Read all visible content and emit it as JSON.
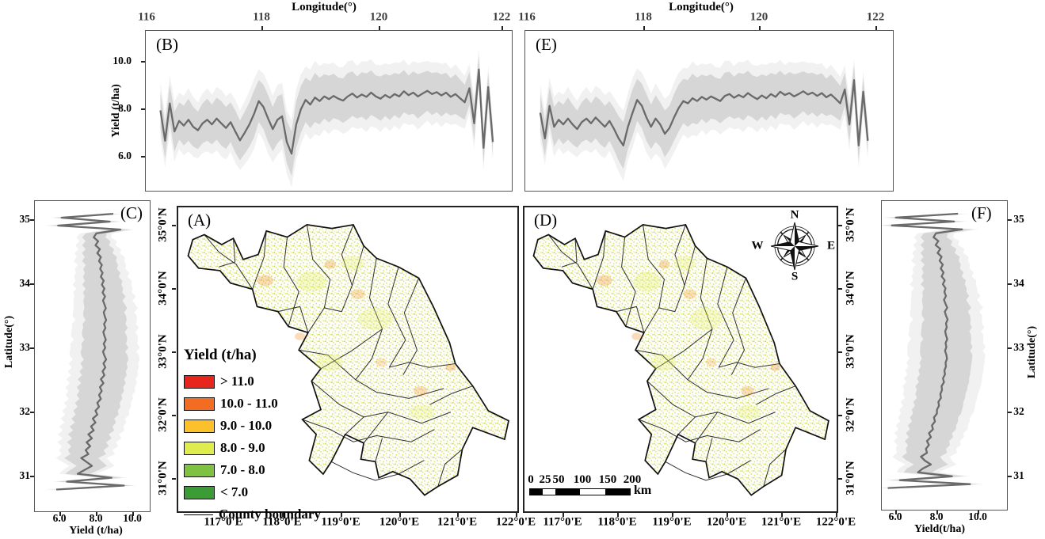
{
  "panels": {
    "a": "(A)",
    "b": "(B)",
    "c": "(C)",
    "d": "(D)",
    "e": "(E)",
    "f": "(F)"
  },
  "axes": {
    "top_title": "Longitude(°)",
    "top_ticks": [
      "116",
      "118",
      "120",
      "122"
    ],
    "b_yield_label": "Yield (t/ha)",
    "b_yield_ticks": [
      "10.0",
      "8.0",
      "6.0"
    ],
    "map_lon_ticks": [
      "117°0'E",
      "118°0'E",
      "119°0'E",
      "120°0'E",
      "121°0'E",
      "122°0'E"
    ],
    "map_lat_ticks": [
      "35°0'N",
      "34°0'N",
      "33°0'N",
      "32°0'N",
      "31°0'N"
    ],
    "c_lat_label": "Latitude(°)",
    "f_lat_label": "Latitude(°)",
    "cf_lat_ticks": [
      "35",
      "34",
      "33",
      "32",
      "31"
    ],
    "cf_yield_ticks": [
      "6.0",
      "8.0",
      "10.0"
    ],
    "c_yield_label": "Yield (t/ha)",
    "f_yield_label": "Yield(t/ha)"
  },
  "legend": {
    "title": "Yield (t/ha)",
    "items": [
      {
        "label": "> 11.0",
        "color": "#e8251d"
      },
      {
        "label": "10.0 - 11.0",
        "color": "#f26c21"
      },
      {
        "label": "9.0 - 10.0",
        "color": "#fcc02a"
      },
      {
        "label": "8.0 - 9.0",
        "color": "#dfec4d"
      },
      {
        "label": "7.0 - 8.0",
        "color": "#7fc241"
      },
      {
        "label": "< 7.0",
        "color": "#3b9c35"
      }
    ],
    "boundary_label": "County boundary"
  },
  "compass": {
    "n": "N",
    "e": "E",
    "s": "S",
    "w": "W"
  },
  "scalebar": {
    "ticks": [
      "0",
      "25",
      "50",
      "100",
      "150",
      "200"
    ],
    "unit": "km"
  },
  "chart_data": [
    {
      "id": "B",
      "type": "line",
      "panel": "(B)",
      "orientation": "horizontal",
      "xlabel": "Longitude(°)",
      "ylabel": "Yield (t/ha)",
      "x_range": [
        115.97,
        122.21
      ],
      "y_range": [
        4.5,
        11.3
      ],
      "x_start": 116.22,
      "x_step": 0.08,
      "line_color": "#6a6a6a",
      "band_color": "#d3d3d3",
      "mean": [
        7.9,
        6.6,
        8.2,
        7.0,
        7.45,
        7.25,
        7.5,
        7.2,
        7.05,
        7.35,
        7.5,
        7.3,
        7.55,
        7.35,
        7.15,
        7.4,
        7.0,
        6.62,
        6.95,
        7.3,
        7.75,
        8.3,
        8.05,
        7.55,
        7.1,
        7.5,
        7.65,
        6.55,
        6.05,
        7.3,
        7.95,
        8.35,
        8.15,
        8.45,
        8.3,
        8.5,
        8.38,
        8.52,
        8.4,
        8.32,
        8.5,
        8.62,
        8.45,
        8.58,
        8.48,
        8.66,
        8.5,
        8.4,
        8.56,
        8.44,
        8.6,
        8.5,
        8.72,
        8.55,
        8.66,
        8.5,
        8.62,
        8.74,
        8.6,
        8.68,
        8.54,
        8.66,
        8.48,
        8.6,
        8.42,
        8.25,
        8.85,
        7.35,
        9.65,
        6.3,
        8.9,
        6.55
      ],
      "band_halfwidth": [
        0.8,
        0.75,
        0.8,
        0.85,
        0.8,
        0.85,
        0.9,
        0.85,
        0.8,
        0.85,
        0.9,
        0.85,
        0.9,
        0.95,
        0.9,
        0.85,
        0.9,
        0.85,
        0.9,
        0.95,
        1.0,
        0.9,
        0.95,
        1.0,
        0.95,
        1.0,
        0.95,
        0.9,
        0.95,
        1.0,
        1.0,
        0.95,
        1.0,
        1.05,
        1.0,
        0.95,
        1.0,
        0.95,
        0.9,
        0.95,
        1.0,
        0.95,
        0.9,
        0.95,
        1.0,
        0.95,
        0.9,
        0.95,
        0.9,
        0.95,
        0.9,
        0.95,
        0.9,
        0.85,
        0.9,
        0.95,
        0.9,
        0.85,
        0.9,
        0.85,
        0.9,
        0.85,
        0.8,
        0.85,
        0.8,
        0.75,
        0.7,
        0.75,
        0.6,
        0.65,
        0.6,
        0.55
      ]
    },
    {
      "id": "E",
      "type": "line",
      "panel": "(E)",
      "orientation": "horizontal",
      "xlabel": "Longitude(°)",
      "ylabel": "Yield (t/ha)",
      "x_range": [
        115.96,
        122.32
      ],
      "y_range": [
        4.5,
        11.3
      ],
      "x_start": 116.22,
      "x_step": 0.08,
      "line_color": "#6a6a6a",
      "band_color": "#d3d3d3",
      "mean": [
        7.8,
        6.7,
        8.1,
        7.2,
        7.5,
        7.3,
        7.55,
        7.3,
        7.1,
        7.4,
        7.55,
        7.35,
        7.6,
        7.4,
        7.2,
        7.45,
        7.1,
        6.7,
        6.4,
        7.2,
        7.8,
        8.35,
        8.1,
        7.6,
        7.2,
        7.55,
        7.3,
        6.9,
        7.15,
        7.6,
        8.0,
        8.3,
        8.2,
        8.42,
        8.3,
        8.48,
        8.36,
        8.5,
        8.4,
        8.3,
        8.52,
        8.6,
        8.44,
        8.56,
        8.46,
        8.64,
        8.5,
        8.38,
        8.54,
        8.42,
        8.6,
        8.48,
        8.7,
        8.56,
        8.64,
        8.5,
        8.6,
        8.72,
        8.58,
        8.66,
        8.52,
        8.64,
        8.46,
        8.58,
        8.4,
        8.2,
        8.8,
        7.3,
        9.2,
        6.4,
        8.7,
        6.6
      ],
      "band_halfwidth": [
        0.8,
        0.75,
        0.8,
        0.85,
        0.8,
        0.85,
        0.9,
        0.85,
        0.8,
        0.85,
        0.9,
        0.85,
        0.9,
        0.95,
        0.9,
        0.85,
        0.9,
        0.95,
        1.0,
        0.95,
        1.0,
        0.9,
        0.95,
        1.0,
        0.95,
        1.0,
        0.95,
        1.0,
        0.95,
        1.0,
        1.0,
        0.95,
        1.0,
        1.05,
        1.0,
        0.95,
        1.0,
        0.95,
        0.9,
        0.95,
        1.0,
        0.95,
        0.9,
        0.95,
        1.0,
        0.95,
        0.9,
        0.95,
        0.9,
        0.95,
        0.9,
        0.95,
        0.9,
        0.85,
        0.9,
        0.95,
        0.9,
        0.85,
        0.9,
        0.85,
        0.9,
        0.85,
        0.8,
        0.85,
        0.8,
        0.75,
        0.7,
        0.75,
        0.6,
        0.65,
        0.6,
        0.55
      ]
    },
    {
      "id": "C",
      "type": "line",
      "panel": "(C)",
      "orientation": "vertical",
      "xlabel": "Yield (t/ha)",
      "ylabel": "Latitude(°)",
      "x_range": [
        30.45,
        35.32
      ],
      "y_range": [
        4.6,
        11.0
      ],
      "x_start": 30.78,
      "x_step": 0.062,
      "line_color": "#6a6a6a",
      "band_color": "#d3d3d3",
      "mean": [
        5.8,
        9.6,
        6.4,
        8.9,
        7.0,
        7.4,
        7.8,
        7.5,
        7.2,
        7.6,
        7.45,
        7.7,
        7.5,
        7.8,
        7.6,
        7.9,
        7.75,
        8.0,
        7.85,
        8.1,
        8.0,
        8.2,
        8.1,
        8.3,
        8.2,
        8.35,
        8.25,
        8.45,
        8.3,
        8.5,
        8.4,
        8.55,
        8.45,
        8.6,
        8.5,
        8.42,
        8.55,
        8.46,
        8.58,
        8.5,
        8.44,
        8.56,
        8.48,
        8.6,
        8.52,
        8.46,
        8.58,
        8.5,
        8.42,
        8.54,
        8.4,
        8.5,
        8.36,
        8.46,
        8.3,
        8.4,
        8.26,
        8.36,
        8.2,
        8.3,
        8.1,
        8.25,
        8.0,
        8.15,
        7.9,
        8.05,
        9.4,
        5.9,
        8.8,
        6.1,
        9.0
      ],
      "band_halfwidth": [
        0.5,
        0.5,
        0.55,
        0.6,
        0.7,
        0.8,
        0.85,
        0.9,
        0.95,
        1.0,
        1.0,
        1.05,
        1.1,
        1.1,
        1.15,
        1.15,
        1.2,
        1.15,
        1.2,
        1.2,
        1.25,
        1.2,
        1.25,
        1.2,
        1.25,
        1.25,
        1.3,
        1.25,
        1.3,
        1.25,
        1.3,
        1.25,
        1.3,
        1.25,
        1.3,
        1.25,
        1.3,
        1.25,
        1.2,
        1.25,
        1.2,
        1.25,
        1.2,
        1.15,
        1.2,
        1.15,
        1.2,
        1.15,
        1.1,
        1.15,
        1.1,
        1.05,
        1.1,
        1.05,
        1.0,
        1.0,
        0.95,
        0.9,
        0.95,
        0.9,
        0.85,
        0.8,
        0.75,
        0.7,
        0.65,
        0.6,
        0.55,
        0.5,
        0.5,
        0.45,
        0.4
      ]
    },
    {
      "id": "F",
      "type": "line",
      "panel": "(F)",
      "orientation": "vertical",
      "xlabel": "Yield(t/ha)",
      "ylabel": "Latitude(°)",
      "x_range": [
        30.45,
        35.32
      ],
      "y_range": [
        5.3,
        11.5
      ],
      "x_start": 30.78,
      "x_step": 0.062,
      "line_color": "#6a6a6a",
      "band_color": "#d3d3d3",
      "mean": [
        5.6,
        9.7,
        6.2,
        8.8,
        7.1,
        7.35,
        7.75,
        7.45,
        7.25,
        7.55,
        7.5,
        7.65,
        7.55,
        7.75,
        7.65,
        7.85,
        7.8,
        7.95,
        7.9,
        8.05,
        8.05,
        8.15,
        8.12,
        8.25,
        8.22,
        8.3,
        8.28,
        8.4,
        8.35,
        8.45,
        8.42,
        8.5,
        8.48,
        8.55,
        8.52,
        8.45,
        8.52,
        8.48,
        8.56,
        8.5,
        8.46,
        8.54,
        8.5,
        8.58,
        8.5,
        8.44,
        8.56,
        8.48,
        8.4,
        8.5,
        8.42,
        8.48,
        8.34,
        8.44,
        8.28,
        8.38,
        8.24,
        8.34,
        8.18,
        8.28,
        8.08,
        8.22,
        7.98,
        8.12,
        7.88,
        8.0,
        9.3,
        5.8,
        8.9,
        6.0,
        9.1
      ],
      "band_halfwidth": [
        0.5,
        0.5,
        0.55,
        0.6,
        0.7,
        0.8,
        0.85,
        0.9,
        0.95,
        1.0,
        1.0,
        1.05,
        1.1,
        1.1,
        1.15,
        1.15,
        1.2,
        1.15,
        1.2,
        1.2,
        1.25,
        1.2,
        1.25,
        1.2,
        1.25,
        1.25,
        1.3,
        1.25,
        1.3,
        1.25,
        1.3,
        1.25,
        1.3,
        1.25,
        1.3,
        1.25,
        1.3,
        1.25,
        1.2,
        1.25,
        1.2,
        1.25,
        1.2,
        1.15,
        1.2,
        1.15,
        1.2,
        1.15,
        1.1,
        1.15,
        1.1,
        1.05,
        1.1,
        1.05,
        1.0,
        1.0,
        0.95,
        0.9,
        0.95,
        0.9,
        0.85,
        0.8,
        0.75,
        0.7,
        0.65,
        0.6,
        0.55,
        0.5,
        0.5,
        0.45,
        0.4
      ]
    }
  ]
}
